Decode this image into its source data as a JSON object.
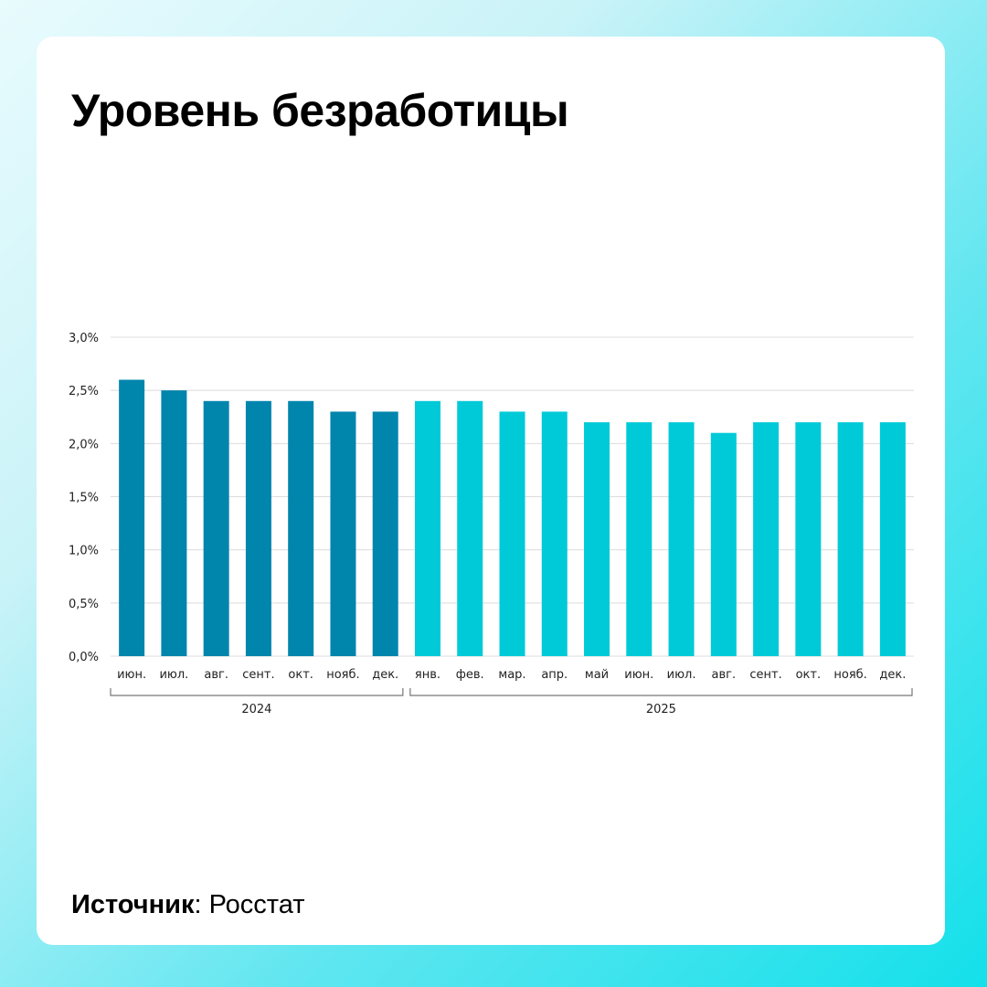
{
  "title": "Уровень безработицы",
  "source": {
    "label": "Источник",
    "value": "Росстат"
  },
  "colors": {
    "2024": "#0085ad",
    "2025": "#00cad8",
    "grid": "#dcdcdc"
  },
  "chart_data": {
    "type": "bar",
    "title": "Уровень безработицы",
    "xlabel": "",
    "ylabel": "",
    "ylim": [
      0,
      3.0
    ],
    "yticks": [
      "0,0%",
      "0,5%",
      "1,0%",
      "1,5%",
      "2,0%",
      "2,5%",
      "3,0%"
    ],
    "grid": true,
    "categories": [
      "июн.",
      "июл.",
      "авг.",
      "сент.",
      "окт.",
      "нояб.",
      "дек.",
      "янв.",
      "фев.",
      "мар.",
      "апр.",
      "май",
      "июн.",
      "июл.",
      "авг.",
      "сент.",
      "окт.",
      "нояб.",
      "дек."
    ],
    "years": [
      {
        "label": "2024",
        "count": 7
      },
      {
        "label": "2025",
        "count": 12
      }
    ],
    "values": [
      2.6,
      2.5,
      2.4,
      2.4,
      2.4,
      2.3,
      2.3,
      2.4,
      2.4,
      2.3,
      2.3,
      2.2,
      2.2,
      2.2,
      2.1,
      2.2,
      2.2,
      2.2,
      2.2
    ]
  }
}
